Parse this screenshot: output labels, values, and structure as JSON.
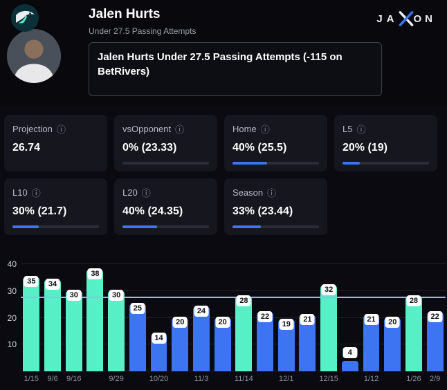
{
  "header": {
    "title": "Jalen Hurts",
    "subtitle": "Under 27.5 Passing Attempts",
    "bet_text": "Jalen Hurts Under 27.5 Passing Attempts (-115 on BetRivers)",
    "brand_left": "JA",
    "brand_right": "ON"
  },
  "icons": {
    "info": "ⓘ"
  },
  "cards": [
    {
      "label": "Projection",
      "value": "26.74",
      "pct": null
    },
    {
      "label": "vsOpponent",
      "value": "0% (23.33)",
      "pct": 0
    },
    {
      "label": "Home",
      "value": "40% (25.5)",
      "pct": 40
    },
    {
      "label": "L5",
      "value": "20% (19)",
      "pct": 20
    },
    {
      "label": "L10",
      "value": "30% (21.7)",
      "pct": 30
    },
    {
      "label": "L20",
      "value": "40% (24.35)",
      "pct": 40
    },
    {
      "label": "Season",
      "value": "33% (23.44)",
      "pct": 33
    }
  ],
  "chart_data": {
    "type": "bar",
    "title": "",
    "xlabel": "",
    "ylabel": "",
    "ylim": [
      0,
      40
    ],
    "yticks": [
      10,
      20,
      30,
      40
    ],
    "grid": true,
    "prop_line": 27.5,
    "colors": {
      "over": "#57efc5",
      "under": "#3d74f2"
    },
    "bars": [
      {
        "value": 35,
        "date": "1/15",
        "color": "over"
      },
      {
        "value": 34,
        "date": "9/6",
        "color": "over"
      },
      {
        "value": 30,
        "date": "9/16",
        "color": "over"
      },
      {
        "value": 38,
        "date": "",
        "color": "over"
      },
      {
        "value": 30,
        "date": "9/29",
        "color": "over"
      },
      {
        "value": 25,
        "date": "",
        "color": "under"
      },
      {
        "value": 14,
        "date": "10/20",
        "color": "under"
      },
      {
        "value": 20,
        "date": "",
        "color": "under"
      },
      {
        "value": 24,
        "date": "11/3",
        "color": "under"
      },
      {
        "value": 20,
        "date": "",
        "color": "under"
      },
      {
        "value": 28,
        "date": "11/14",
        "color": "over"
      },
      {
        "value": 22,
        "date": "",
        "color": "under"
      },
      {
        "value": 19,
        "date": "12/1",
        "color": "under"
      },
      {
        "value": 21,
        "date": "",
        "color": "under"
      },
      {
        "value": 32,
        "date": "12/15",
        "color": "over"
      },
      {
        "value": 4,
        "date": "",
        "color": "under"
      },
      {
        "value": 21,
        "date": "1/12",
        "color": "under"
      },
      {
        "value": 20,
        "date": "",
        "color": "under"
      },
      {
        "value": 28,
        "date": "1/26",
        "color": "over"
      },
      {
        "value": 22,
        "date": "2/9",
        "color": "under"
      }
    ]
  }
}
